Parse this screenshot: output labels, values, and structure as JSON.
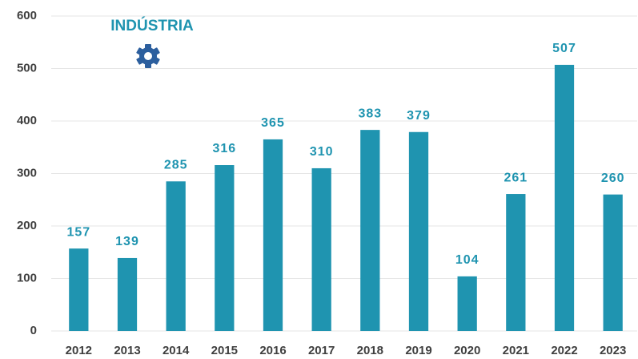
{
  "chart_data": {
    "type": "bar",
    "title": "INDÚSTRIA",
    "categories": [
      "2012",
      "2013",
      "2014",
      "2015",
      "2016",
      "2017",
      "2018",
      "2019",
      "2020",
      "2021",
      "2022",
      "2023"
    ],
    "values": [
      157,
      139,
      285,
      316,
      365,
      310,
      383,
      379,
      104,
      261,
      507,
      260
    ],
    "color": "#1f94b0",
    "ylim": [
      0,
      600
    ],
    "yticks": [
      0,
      100,
      200,
      300,
      400,
      500,
      600
    ],
    "grid": true
  }
}
